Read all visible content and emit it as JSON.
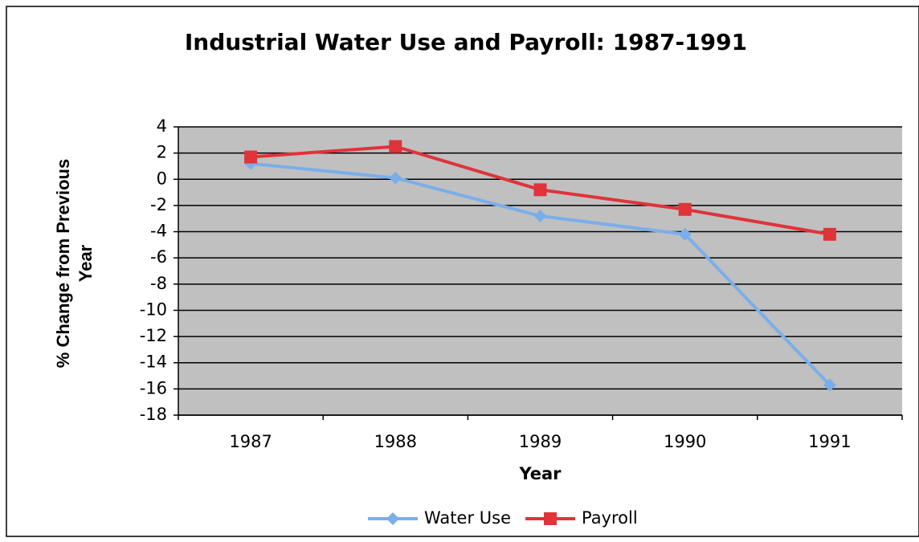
{
  "chart_data": {
    "type": "line",
    "title": "Industrial Water Use and Payroll: 1987-1991",
    "x_label": "Year",
    "y_label": "% Change from Previous Year",
    "categories": [
      "1987",
      "1988",
      "1989",
      "1990",
      "1991"
    ],
    "series": [
      {
        "name": "Water Use",
        "color": "#7aaeea",
        "marker": "diamond",
        "values": [
          1.2,
          0.1,
          -2.8,
          -4.2,
          -15.7
        ]
      },
      {
        "name": "Payroll",
        "color": "#e0333a",
        "marker": "square",
        "values": [
          1.7,
          2.5,
          -0.8,
          -2.3,
          -4.2
        ]
      }
    ],
    "ylim": [
      -18,
      4
    ],
    "yticks": [
      -18,
      -16,
      -14,
      -12,
      -10,
      -8,
      -6,
      -4,
      -2,
      0,
      2,
      4
    ],
    "grid": true,
    "plot_background": "#c0c0c0",
    "legend": "bottom"
  }
}
